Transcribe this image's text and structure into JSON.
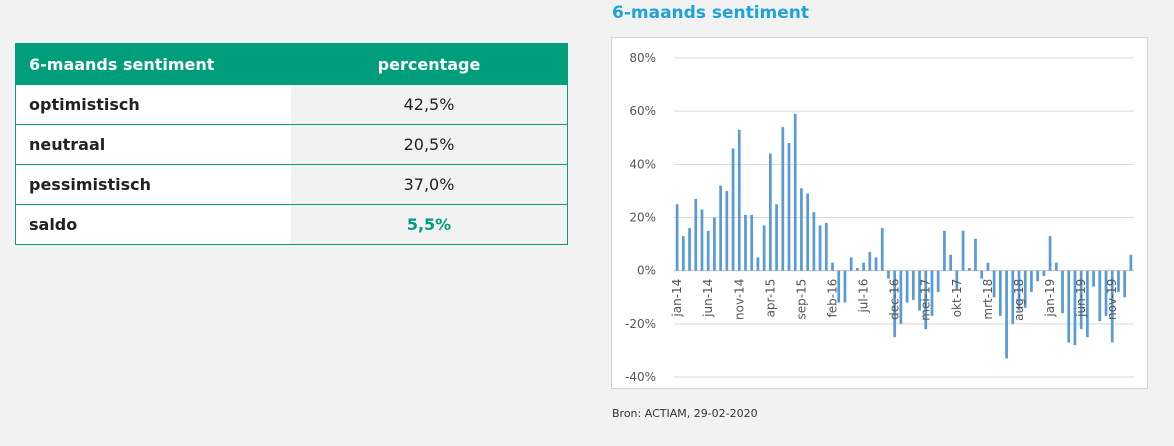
{
  "table": {
    "header": {
      "label": "6-maands sentiment",
      "value": "percentage"
    },
    "rows": [
      {
        "label": "optimistisch",
        "value": "42,5%"
      },
      {
        "label": "neutraal",
        "value": "20,5%"
      },
      {
        "label": "pessimistisch",
        "value": "37,0%"
      },
      {
        "label": "saldo",
        "value": "5,5%"
      }
    ],
    "accent_color": "#009e7b"
  },
  "chart_title": "6-maands sentiment",
  "source": "Bron: ACTIAM, 29-02-2020",
  "chart_data": {
    "type": "bar",
    "title": "6-maands sentiment",
    "y_unit": "%",
    "ylim": [
      -40,
      80
    ],
    "yticks": [
      80,
      60,
      40,
      20,
      0,
      -20,
      -40
    ],
    "ytick_labels": [
      "80%",
      "60%",
      "40%",
      "20%",
      "0%",
      "-20%",
      "-40%"
    ],
    "xtick_labels": [
      "jan-14",
      "jun-14",
      "nov-14",
      "apr-15",
      "sep-15",
      "feb-16",
      "jul-16",
      "dec-16",
      "mei-17",
      "okt-17",
      "mrt-18",
      "aug-18",
      "jan-19",
      "jun-19",
      "nov-19"
    ],
    "grid": true,
    "bar_color": "#5b9bd5",
    "categories": [
      "jan-14",
      "feb-14",
      "mrt-14",
      "apr-14",
      "mei-14",
      "jun-14",
      "jul-14",
      "aug-14",
      "sep-14",
      "okt-14",
      "nov-14",
      "dec-14",
      "jan-15",
      "feb-15",
      "mrt-15",
      "apr-15",
      "mei-15",
      "jun-15",
      "jul-15",
      "aug-15",
      "sep-15",
      "okt-15",
      "nov-15",
      "dec-15",
      "jan-16",
      "feb-16",
      "mrt-16",
      "apr-16",
      "mei-16",
      "jun-16",
      "jul-16",
      "aug-16",
      "sep-16",
      "okt-16",
      "nov-16",
      "dec-16",
      "jan-17",
      "feb-17",
      "mrt-17",
      "apr-17",
      "mei-17",
      "jun-17",
      "jul-17",
      "aug-17",
      "sep-17",
      "okt-17",
      "nov-17",
      "dec-17",
      "jan-18",
      "feb-18",
      "mrt-18",
      "apr-18",
      "mei-18",
      "jun-18",
      "jul-18",
      "aug-18",
      "sep-18",
      "okt-18",
      "nov-18",
      "dec-18",
      "jan-19",
      "feb-19",
      "mrt-19",
      "apr-19",
      "mei-19",
      "jun-19",
      "jul-19",
      "aug-19",
      "sep-19",
      "okt-19",
      "nov-19",
      "dec-19",
      "jan-20",
      "feb-20"
    ],
    "values": [
      25,
      13,
      16,
      27,
      23,
      15,
      20,
      32,
      30,
      46,
      53,
      21,
      21,
      5,
      17,
      44,
      25,
      54,
      48,
      59,
      31,
      29,
      22,
      17,
      18,
      3,
      -12,
      -12,
      5,
      1,
      3,
      7,
      5,
      16,
      -3,
      -25,
      -20,
      -12,
      -11,
      -15,
      -22,
      -17,
      -8,
      15,
      6,
      -7,
      15,
      1,
      12,
      -3,
      3,
      -10,
      -17,
      -33,
      -20,
      -15,
      -14,
      -8,
      -4,
      -2,
      13,
      3,
      -16,
      -27,
      -28,
      -22,
      -25,
      -6,
      -19,
      -17,
      -27,
      -8,
      -10,
      6
    ]
  }
}
